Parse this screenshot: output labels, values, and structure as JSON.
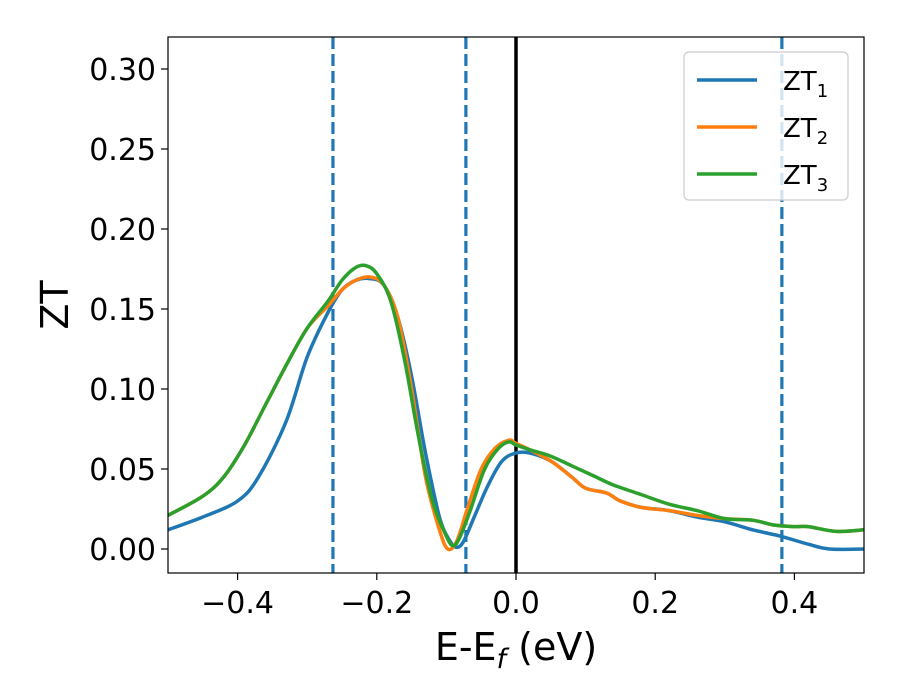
{
  "chart_data": {
    "type": "line",
    "xlabel": {
      "base": "E-E",
      "sub": "f",
      "suffix": " (eV)"
    },
    "ylabel": "ZT",
    "xlim": [
      -0.5,
      0.5
    ],
    "ylim": [
      -0.015,
      0.32
    ],
    "xticks": [
      -0.4,
      -0.2,
      0.0,
      0.2,
      0.4
    ],
    "xtick_labels": [
      "−0.4",
      "−0.2",
      "0.0",
      "0.2",
      "0.4"
    ],
    "yticks": [
      0.0,
      0.05,
      0.1,
      0.15,
      0.2,
      0.25,
      0.3
    ],
    "ytick_labels": [
      "0.00",
      "0.05",
      "0.10",
      "0.15",
      "0.20",
      "0.25",
      "0.30"
    ],
    "grid": false,
    "legend_position": "top-right",
    "vlines": [
      {
        "x": -0.263,
        "style": "dashed",
        "color": "#1f77b4"
      },
      {
        "x": -0.072,
        "style": "dashed",
        "color": "#1f77b4"
      },
      {
        "x": 0.0,
        "style": "solid",
        "color": "#000000"
      },
      {
        "x": 0.382,
        "style": "dashed",
        "color": "#1f77b4"
      }
    ],
    "series": [
      {
        "name": "ZT",
        "sub": "1",
        "color": "#1f77b4",
        "points": [
          [
            -0.5,
            0.012
          ],
          [
            -0.45,
            0.02
          ],
          [
            -0.4,
            0.03
          ],
          [
            -0.37,
            0.045
          ],
          [
            -0.33,
            0.08
          ],
          [
            -0.3,
            0.12
          ],
          [
            -0.27,
            0.148
          ],
          [
            -0.25,
            0.162
          ],
          [
            -0.23,
            0.168
          ],
          [
            -0.21,
            0.169
          ],
          [
            -0.19,
            0.165
          ],
          [
            -0.17,
            0.145
          ],
          [
            -0.15,
            0.108
          ],
          [
            -0.13,
            0.06
          ],
          [
            -0.11,
            0.02
          ],
          [
            -0.095,
            0.005
          ],
          [
            -0.085,
            0.001
          ],
          [
            -0.075,
            0.005
          ],
          [
            -0.06,
            0.02
          ],
          [
            -0.04,
            0.04
          ],
          [
            -0.02,
            0.055
          ],
          [
            0.0,
            0.06
          ],
          [
            0.02,
            0.06
          ],
          [
            0.05,
            0.055
          ],
          [
            0.08,
            0.045
          ],
          [
            0.1,
            0.038
          ],
          [
            0.13,
            0.035
          ],
          [
            0.15,
            0.03
          ],
          [
            0.18,
            0.026
          ],
          [
            0.22,
            0.024
          ],
          [
            0.26,
            0.02
          ],
          [
            0.3,
            0.017
          ],
          [
            0.34,
            0.012
          ],
          [
            0.38,
            0.008
          ],
          [
            0.42,
            0.003
          ],
          [
            0.45,
            0.0
          ],
          [
            0.5,
            0.0
          ]
        ]
      },
      {
        "name": "ZT",
        "sub": "2",
        "color": "#ff7f0e",
        "points": [
          [
            -0.5,
            0.021
          ],
          [
            -0.45,
            0.033
          ],
          [
            -0.42,
            0.045
          ],
          [
            -0.39,
            0.065
          ],
          [
            -0.36,
            0.09
          ],
          [
            -0.33,
            0.115
          ],
          [
            -0.3,
            0.138
          ],
          [
            -0.27,
            0.152
          ],
          [
            -0.25,
            0.162
          ],
          [
            -0.23,
            0.168
          ],
          [
            -0.21,
            0.17
          ],
          [
            -0.19,
            0.165
          ],
          [
            -0.17,
            0.145
          ],
          [
            -0.15,
            0.1
          ],
          [
            -0.13,
            0.045
          ],
          [
            -0.11,
            0.012
          ],
          [
            -0.098,
            0.0
          ],
          [
            -0.085,
            0.005
          ],
          [
            -0.07,
            0.025
          ],
          [
            -0.05,
            0.05
          ],
          [
            -0.03,
            0.063
          ],
          [
            -0.01,
            0.068
          ],
          [
            0.0,
            0.066
          ],
          [
            0.02,
            0.062
          ],
          [
            0.05,
            0.055
          ],
          [
            0.08,
            0.045
          ],
          [
            0.1,
            0.038
          ],
          [
            0.13,
            0.035
          ],
          [
            0.15,
            0.03
          ],
          [
            0.18,
            0.026
          ],
          [
            0.22,
            0.024
          ],
          [
            0.26,
            0.021
          ],
          [
            0.3,
            0.019
          ],
          [
            0.34,
            0.018
          ],
          [
            0.37,
            0.015
          ],
          [
            0.4,
            0.014
          ],
          [
            0.42,
            0.014
          ],
          [
            0.46,
            0.011
          ],
          [
            0.5,
            0.012
          ]
        ]
      },
      {
        "name": "ZT",
        "sub": "3",
        "color": "#2ca02c",
        "points": [
          [
            -0.5,
            0.021
          ],
          [
            -0.45,
            0.033
          ],
          [
            -0.42,
            0.045
          ],
          [
            -0.39,
            0.065
          ],
          [
            -0.36,
            0.09
          ],
          [
            -0.33,
            0.115
          ],
          [
            -0.3,
            0.138
          ],
          [
            -0.27,
            0.155
          ],
          [
            -0.25,
            0.168
          ],
          [
            -0.23,
            0.176
          ],
          [
            -0.215,
            0.177
          ],
          [
            -0.2,
            0.172
          ],
          [
            -0.18,
            0.155
          ],
          [
            -0.16,
            0.118
          ],
          [
            -0.14,
            0.07
          ],
          [
            -0.12,
            0.03
          ],
          [
            -0.1,
            0.008
          ],
          [
            -0.09,
            0.002
          ],
          [
            -0.08,
            0.008
          ],
          [
            -0.065,
            0.025
          ],
          [
            -0.045,
            0.05
          ],
          [
            -0.025,
            0.063
          ],
          [
            -0.01,
            0.067
          ],
          [
            0.0,
            0.065
          ],
          [
            0.02,
            0.062
          ],
          [
            0.05,
            0.058
          ],
          [
            0.08,
            0.052
          ],
          [
            0.11,
            0.046
          ],
          [
            0.14,
            0.04
          ],
          [
            0.18,
            0.034
          ],
          [
            0.22,
            0.028
          ],
          [
            0.26,
            0.024
          ],
          [
            0.3,
            0.019
          ],
          [
            0.34,
            0.018
          ],
          [
            0.37,
            0.015
          ],
          [
            0.4,
            0.014
          ],
          [
            0.42,
            0.014
          ],
          [
            0.46,
            0.011
          ],
          [
            0.5,
            0.012
          ]
        ]
      }
    ]
  }
}
